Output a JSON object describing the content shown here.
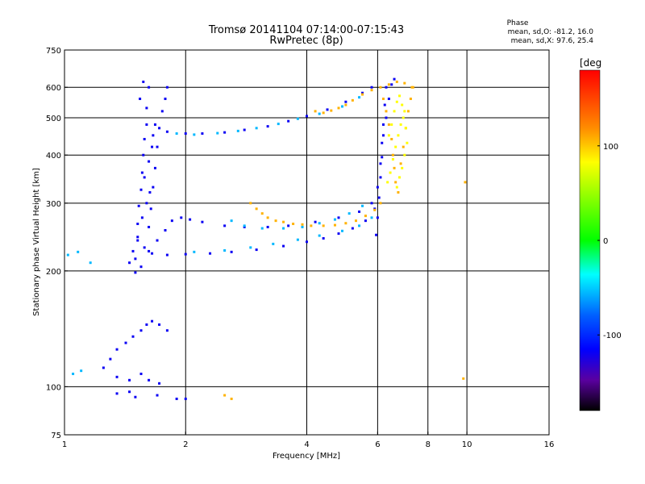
{
  "chart_data": {
    "type": "scatter",
    "title": "Tromsø 20141104 07:14:00-07:15:43",
    "subtitle": "RwPretec (8p)",
    "xlabel": "Frequency [MHz]",
    "ylabel": "Stationary phase Virtual Height [km]",
    "x_scale": "log",
    "y_scale": "log",
    "xlim": [
      1,
      16
    ],
    "ylim": [
      75,
      750
    ],
    "x_ticks": [
      1,
      2,
      4,
      6,
      8,
      10,
      16
    ],
    "y_ticks": [
      75,
      100,
      200,
      300,
      400,
      500,
      600,
      750
    ],
    "grid_x": [
      2,
      4,
      6,
      8,
      10
    ],
    "grid_y": [
      100,
      200,
      300,
      400,
      500,
      600
    ],
    "grid": true,
    "phase_header": "Phase",
    "phase_stats": [
      "mean, sd,O: -81.2, 16.0",
      "mean, sd,X:  97.6, 25.4"
    ],
    "colorbar": {
      "label": "[deg",
      "range": [
        -180,
        180
      ],
      "ticks": [
        100,
        0,
        -100
      ],
      "colors": [
        "#ff0000",
        "#ff8c00",
        "#ffff00",
        "#00ff00",
        "#00ffff",
        "#0060ff",
        "#0000ff",
        "#5a00a0",
        "#000000"
      ]
    },
    "series": [
      {
        "phase_deg": -95,
        "points": [
          [
            1.5,
            198
          ],
          [
            1.5,
            215
          ],
          [
            1.52,
            240
          ],
          [
            1.52,
            265
          ],
          [
            1.53,
            295
          ],
          [
            1.55,
            325
          ],
          [
            1.56,
            360
          ],
          [
            1.57,
            400
          ],
          [
            1.58,
            440
          ],
          [
            1.6,
            480
          ],
          [
            1.6,
            530
          ],
          [
            1.62,
            600
          ],
          [
            1.55,
            205
          ],
          [
            1.58,
            230
          ],
          [
            1.62,
            260
          ],
          [
            1.64,
            290
          ],
          [
            1.66,
            330
          ],
          [
            1.68,
            370
          ],
          [
            1.7,
            420
          ],
          [
            1.72,
            470
          ],
          [
            1.75,
            520
          ],
          [
            1.78,
            560
          ],
          [
            1.8,
            600
          ],
          [
            1.62,
            225
          ],
          [
            1.7,
            240
          ],
          [
            1.78,
            255
          ],
          [
            1.85,
            270
          ],
          [
            1.95,
            275
          ],
          [
            2.05,
            272
          ],
          [
            2.2,
            268
          ],
          [
            2.5,
            262
          ],
          [
            2.8,
            260
          ],
          [
            3.2,
            260
          ],
          [
            3.6,
            262
          ],
          [
            4.2,
            268
          ],
          [
            4.8,
            275
          ],
          [
            5.4,
            285
          ],
          [
            5.8,
            300
          ],
          [
            6.0,
            330
          ],
          [
            6.1,
            380
          ],
          [
            6.15,
            430
          ],
          [
            6.2,
            480
          ],
          [
            6.25,
            540
          ],
          [
            6.3,
            600
          ],
          [
            1.65,
            222
          ],
          [
            1.8,
            220
          ],
          [
            2.0,
            221
          ],
          [
            2.3,
            222
          ],
          [
            2.6,
            224
          ],
          [
            3.0,
            227
          ],
          [
            3.5,
            232
          ],
          [
            4.0,
            238
          ],
          [
            4.4,
            243
          ],
          [
            4.8,
            250
          ],
          [
            5.2,
            258
          ],
          [
            5.6,
            270
          ],
          [
            5.9,
            290
          ],
          [
            1.66,
            450
          ],
          [
            1.8,
            460
          ],
          [
            2.0,
            455
          ],
          [
            2.2,
            455
          ],
          [
            2.5,
            458
          ],
          [
            2.8,
            465
          ],
          [
            3.2,
            475
          ],
          [
            3.6,
            490
          ],
          [
            4.0,
            505
          ],
          [
            4.5,
            525
          ],
          [
            5.0,
            550
          ],
          [
            5.5,
            580
          ],
          [
            5.8,
            600
          ],
          [
            1.3,
            118
          ],
          [
            1.35,
            125
          ],
          [
            1.42,
            130
          ],
          [
            1.48,
            135
          ],
          [
            1.55,
            140
          ],
          [
            1.6,
            145
          ],
          [
            1.65,
            148
          ],
          [
            1.72,
            145
          ],
          [
            1.8,
            140
          ],
          [
            1.25,
            112
          ],
          [
            1.35,
            106
          ],
          [
            1.45,
            104
          ],
          [
            1.55,
            108
          ],
          [
            1.62,
            104
          ],
          [
            1.72,
            102
          ],
          [
            1.35,
            96
          ],
          [
            1.5,
            94
          ],
          [
            1.7,
            95
          ],
          [
            1.9,
            93
          ],
          [
            2.0,
            93
          ],
          [
            1.45,
            97
          ],
          [
            5.95,
            248
          ],
          [
            6.0,
            275
          ],
          [
            6.05,
            310
          ],
          [
            6.1,
            350
          ],
          [
            6.15,
            395
          ],
          [
            6.2,
            450
          ],
          [
            6.3,
            500
          ],
          [
            6.4,
            560
          ],
          [
            6.5,
            610
          ],
          [
            6.6,
            630
          ],
          [
            1.45,
            210
          ],
          [
            1.48,
            225
          ],
          [
            1.52,
            245
          ],
          [
            1.56,
            275
          ],
          [
            1.6,
            300
          ],
          [
            1.63,
            320
          ],
          [
            1.58,
            350
          ],
          [
            1.62,
            385
          ],
          [
            1.65,
            420
          ],
          [
            1.68,
            480
          ],
          [
            1.54,
            560
          ],
          [
            1.57,
            620
          ]
        ]
      },
      {
        "phase_deg": -20,
        "points": [
          [
            2.6,
            270
          ],
          [
            2.8,
            262
          ],
          [
            3.1,
            258
          ],
          [
            3.5,
            258
          ],
          [
            3.9,
            260
          ],
          [
            4.3,
            266
          ],
          [
            4.7,
            272
          ],
          [
            5.1,
            282
          ],
          [
            5.5,
            295
          ],
          [
            1.9,
            455
          ],
          [
            2.1,
            452
          ],
          [
            2.4,
            456
          ],
          [
            2.7,
            462
          ],
          [
            3.0,
            470
          ],
          [
            3.4,
            482
          ],
          [
            3.8,
            497
          ],
          [
            4.3,
            512
          ],
          [
            4.9,
            535
          ],
          [
            5.4,
            565
          ],
          [
            2.1,
            224
          ],
          [
            2.5,
            226
          ],
          [
            2.9,
            230
          ],
          [
            3.3,
            235
          ],
          [
            3.8,
            241
          ],
          [
            4.3,
            247
          ],
          [
            4.9,
            254
          ],
          [
            5.4,
            262
          ],
          [
            5.8,
            275
          ],
          [
            1.05,
            108
          ],
          [
            1.1,
            110
          ],
          [
            1.02,
            220
          ],
          [
            1.08,
            224
          ],
          [
            1.16,
            210
          ]
        ]
      },
      {
        "phase_deg": 120,
        "points": [
          [
            2.9,
            300
          ],
          [
            3.0,
            290
          ],
          [
            3.1,
            282
          ],
          [
            3.2,
            275
          ],
          [
            3.35,
            270
          ],
          [
            3.5,
            268
          ],
          [
            3.7,
            265
          ],
          [
            3.9,
            264
          ],
          [
            4.1,
            262
          ],
          [
            4.4,
            262
          ],
          [
            4.7,
            263
          ],
          [
            5.0,
            266
          ],
          [
            5.3,
            270
          ],
          [
            5.6,
            278
          ],
          [
            5.9,
            288
          ],
          [
            6.1,
            300
          ],
          [
            4.2,
            520
          ],
          [
            4.4,
            515
          ],
          [
            4.6,
            522
          ],
          [
            4.8,
            530
          ],
          [
            5.0,
            540
          ],
          [
            5.2,
            555
          ],
          [
            5.5,
            575
          ],
          [
            5.8,
            590
          ],
          [
            6.1,
            600
          ],
          [
            6.4,
            610
          ],
          [
            6.7,
            620
          ],
          [
            7.0,
            615
          ],
          [
            7.3,
            600
          ],
          [
            6.2,
            560
          ],
          [
            6.3,
            520
          ],
          [
            6.4,
            480
          ],
          [
            6.5,
            440
          ],
          [
            6.55,
            400
          ],
          [
            6.6,
            370
          ],
          [
            6.65,
            340
          ],
          [
            6.75,
            320
          ],
          [
            6.85,
            380
          ],
          [
            6.95,
            420
          ],
          [
            7.05,
            470
          ],
          [
            7.15,
            520
          ],
          [
            7.25,
            560
          ],
          [
            7.35,
            600
          ],
          [
            2.5,
            95
          ],
          [
            2.6,
            93
          ],
          [
            9.8,
            105
          ],
          [
            9.9,
            340
          ]
        ]
      },
      {
        "phase_deg": 90,
        "points": [
          [
            6.35,
            340
          ],
          [
            6.45,
            360
          ],
          [
            6.55,
            390
          ],
          [
            6.65,
            420
          ],
          [
            6.75,
            450
          ],
          [
            6.85,
            480
          ],
          [
            6.95,
            500
          ],
          [
            7.05,
            470
          ],
          [
            7.1,
            430
          ],
          [
            7.0,
            400
          ],
          [
            6.9,
            370
          ],
          [
            6.8,
            350
          ],
          [
            6.7,
            330
          ],
          [
            6.4,
            450
          ],
          [
            6.5,
            480
          ],
          [
            6.6,
            520
          ],
          [
            6.7,
            550
          ],
          [
            6.8,
            570
          ],
          [
            6.9,
            540
          ],
          [
            7.0,
            520
          ]
        ]
      }
    ]
  }
}
